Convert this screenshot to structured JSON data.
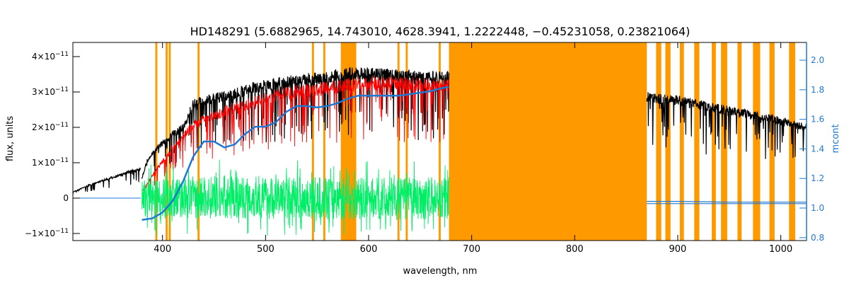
{
  "chart_data": {
    "type": "line",
    "title": "HD148291    (5.6882965, 14.743010, 4628.3941, 1.2222448, −0.45231058, 0.23821064)",
    "xlabel": "wavelength, nm",
    "ylabel": "flux, units",
    "y2label": "mcont",
    "xlim": [
      313,
      1025
    ],
    "ylim": [
      -1.2e-11,
      4.4e-11
    ],
    "y2lim": [
      0.78,
      2.12
    ],
    "grid": false,
    "x_ticks": [
      {
        "value": 400,
        "label": "400"
      },
      {
        "value": 500,
        "label": "500"
      },
      {
        "value": 600,
        "label": "600"
      },
      {
        "value": 700,
        "label": "700"
      },
      {
        "value": 800,
        "label": "800"
      },
      {
        "value": 900,
        "label": "900"
      },
      {
        "value": 1000,
        "label": "1000"
      }
    ],
    "y_ticks": [
      {
        "value": -1e-11,
        "base": "−1×10",
        "exp": "−11"
      },
      {
        "value": 0,
        "base": "0",
        "exp": ""
      },
      {
        "value": 1e-11,
        "base": "1×10",
        "exp": "−11"
      },
      {
        "value": 2e-11,
        "base": "2×10",
        "exp": "−11"
      },
      {
        "value": 3e-11,
        "base": "3×10",
        "exp": "−11"
      },
      {
        "value": 4e-11,
        "base": "4×10",
        "exp": "−11"
      }
    ],
    "y2_ticks": [
      {
        "value": 0.8,
        "label": "0.8"
      },
      {
        "value": 1.0,
        "label": "1.0"
      },
      {
        "value": 1.2,
        "label": "1.2"
      },
      {
        "value": 1.4,
        "label": "1.4"
      },
      {
        "value": 1.6,
        "label": "1.6"
      },
      {
        "value": 1.8,
        "label": "1.8"
      },
      {
        "value": 2.0,
        "label": "2.0"
      }
    ],
    "masked_regions": [
      [
        393,
        395
      ],
      [
        403,
        405
      ],
      [
        406,
        408
      ],
      [
        434,
        436
      ],
      [
        545,
        547
      ],
      [
        556,
        558
      ],
      [
        573,
        588
      ],
      [
        628,
        630
      ],
      [
        636,
        638
      ],
      [
        668,
        670
      ],
      [
        678,
        870
      ],
      [
        879,
        884
      ],
      [
        888,
        893
      ],
      [
        902,
        906
      ],
      [
        916,
        921
      ],
      [
        933,
        937
      ],
      [
        942,
        948
      ],
      [
        958,
        962
      ],
      [
        973,
        980
      ],
      [
        989,
        994
      ],
      [
        1008,
        1014
      ]
    ],
    "series": [
      {
        "role": "observed",
        "color": "#000000",
        "noise": 0.1,
        "segments": [
          {
            "x": [
              313,
              330,
              350,
              370,
              379
            ],
            "y": [
              1.8e-12,
              4e-12,
              6e-12,
              8e-12,
              8.5e-12
            ]
          },
          {
            "x": [
              380,
              385,
              395,
              410,
              420,
              430,
              440,
              455,
              470,
              490,
              510,
              530,
              560,
              580,
              600,
              630,
              650,
              678
            ],
            "y": [
              6e-12,
              1.1e-11,
              1.5e-11,
              1.9e-11,
              2.1e-11,
              2.8e-11,
              2.9e-11,
              3e-11,
              3.1e-11,
              3.3e-11,
              3.4e-11,
              3.5e-11,
              3.6e-11,
              3.7e-11,
              3.7e-11,
              3.65e-11,
              3.62e-11,
              3.6e-11
            ]
          },
          {
            "x": [
              870,
              900,
              950,
              1000,
              1025
            ],
            "y": [
              3e-11,
              2.9e-11,
              2.6e-11,
              2.3e-11,
              2.1e-11
            ]
          }
        ]
      },
      {
        "role": "model",
        "color": "#ff0000",
        "noise": 0.12,
        "segments": [
          {
            "x": [
              380,
              395,
              410,
              430,
              450,
              470,
              490,
              510,
              530,
              560,
              580,
              600,
              630,
              660,
              678
            ],
            "y": [
              2e-12,
              9e-12,
              1.5e-11,
              2.2e-11,
              2.5e-11,
              2.7e-11,
              2.9e-11,
              3.1e-11,
              3.2e-11,
              3.3e-11,
              3.4e-11,
              3.45e-11,
              3.45e-11,
              3.4e-11,
              3.4e-11
            ]
          }
        ]
      },
      {
        "role": "residual",
        "color": "#00ee66",
        "noise": 1,
        "segments": [
          {
            "x": [
              380,
              450,
              520,
              600,
              678
            ],
            "y": [
              0,
              2e-13,
              0,
              -2e-13,
              0
            ]
          }
        ]
      },
      {
        "role": "mcont",
        "color": "#1f78d1",
        "axis": "right",
        "segments": [
          {
            "x": [
              380,
              390,
              400,
              410,
              420,
              430,
              440,
              450,
              460,
              470,
              480,
              490,
              500,
              510,
              520,
              530,
              540,
              550,
              560,
              570,
              580,
              590,
              600,
              610,
              620,
              630,
              640,
              650,
              660,
              670,
              678
            ],
            "y": [
              0.92,
              0.93,
              0.97,
              1.05,
              1.18,
              1.35,
              1.45,
              1.45,
              1.41,
              1.43,
              1.5,
              1.55,
              1.55,
              1.58,
              1.65,
              1.69,
              1.69,
              1.68,
              1.69,
              1.71,
              1.74,
              1.76,
              1.76,
              1.76,
              1.76,
              1.76,
              1.77,
              1.78,
              1.79,
              1.81,
              1.82
            ]
          },
          {
            "x": [
              870,
              900,
              950,
              1000,
              1025
            ],
            "y": [
              1.045,
              1.045,
              1.04,
              1.04,
              1.04
            ]
          },
          {
            "x": [
              870,
              900,
              950,
              1000,
              1025
            ],
            "y": [
              1.03,
              1.03,
              1.03,
              1.03,
              1.03
            ]
          }
        ]
      }
    ]
  }
}
